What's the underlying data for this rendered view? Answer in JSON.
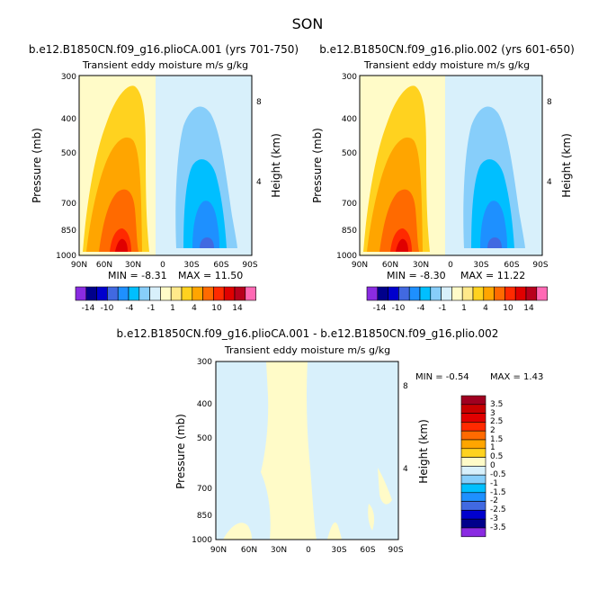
{
  "figure": {
    "title": "SON"
  },
  "colors": {
    "panel_scale_colors": [
      "#8a2be2",
      "#00008b",
      "#0000cd",
      "#4169e1",
      "#1e90ff",
      "#00bfff",
      "#87cefa",
      "#d8f0fb",
      "#fffbc8",
      "#ffe98a",
      "#ffd21f",
      "#ffa500",
      "#ff6a00",
      "#ff2a00",
      "#e00000",
      "#b8001c",
      "#ff69b4"
    ],
    "diff_scale_colors": [
      "#8a2be2",
      "#00008b",
      "#0000cd",
      "#4169e1",
      "#1e90ff",
      "#00bfff",
      "#87cefa",
      "#d8f0fb",
      "#fffbc8",
      "#ffd21f",
      "#ffa500",
      "#ff6a00",
      "#ff2a00",
      "#e00000",
      "#c80000",
      "#a00020"
    ]
  },
  "chart_data": [
    {
      "type": "contour",
      "title": "b.e12.B1850CN.f09_g16.plioCA.001 (yrs 701-750)",
      "subtitle": "Transient eddy moisture m/s g/kg",
      "ylabel": "Pressure (mb)",
      "y2label": "Height (km)",
      "x_ticks": [
        "90N",
        "60N",
        "30N",
        "0",
        "30S",
        "60S",
        "90S"
      ],
      "y_ticks": [
        "300",
        "400",
        "500",
        "700",
        "850",
        "1000"
      ],
      "y2_ticks": [
        "8",
        "4"
      ],
      "min_label": "MIN =  -8.31",
      "max_label": "MAX =  11.50",
      "colorbar_labels": [
        "-14",
        "-10",
        "-4",
        "-1",
        "1",
        "4",
        "10",
        "14"
      ]
    },
    {
      "type": "contour",
      "title": "b.e12.B1850CN.f09_g16.plio.002 (yrs 601-650)",
      "subtitle": "Transient eddy moisture m/s g/kg",
      "ylabel": "Pressure (mb)",
      "y2label": "Height (km)",
      "x_ticks": [
        "90N",
        "60N",
        "30N",
        "0",
        "30S",
        "60S",
        "90S"
      ],
      "y_ticks": [
        "300",
        "400",
        "500",
        "700",
        "850",
        "1000"
      ],
      "y2_ticks": [
        "8",
        "4"
      ],
      "min_label": "MIN =  -8.30",
      "max_label": "MAX =  11.22",
      "colorbar_labels": [
        "-14",
        "-10",
        "-4",
        "-1",
        "1",
        "4",
        "10",
        "14"
      ]
    },
    {
      "type": "contour",
      "title": "b.e12.B1850CN.f09_g16.plioCA.001 - b.e12.B1850CN.f09_g16.plio.002",
      "subtitle": "Transient eddy moisture m/s g/kg",
      "ylabel": "Pressure (mb)",
      "y2label": "Height (km)",
      "x_ticks": [
        "90N",
        "60N",
        "30N",
        "0",
        "30S",
        "60S",
        "90S"
      ],
      "y_ticks": [
        "300",
        "400",
        "500",
        "700",
        "850",
        "1000"
      ],
      "y2_ticks": [
        "8",
        "4"
      ],
      "min_label": "MIN =  -0.54",
      "max_label": "MAX =   1.43",
      "colorbar_labels": [
        "3.5",
        "3",
        "2.5",
        "2",
        "1.5",
        "1",
        "0.5",
        "0",
        "-0.5",
        "-1",
        "-1.5",
        "-2",
        "-2.5",
        "-3",
        "-3.5"
      ]
    }
  ]
}
